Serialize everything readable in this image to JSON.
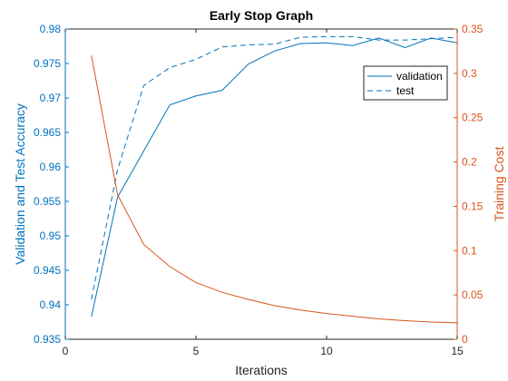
{
  "chart_data": {
    "type": "line",
    "title": "Early Stop Graph",
    "xlabel": "Iterations",
    "ylabel_left": "Validation and Test Accuracy",
    "ylabel_right": "Training Cost",
    "xlim": [
      0,
      15
    ],
    "ylim_left": [
      0.935,
      0.98
    ],
    "ylim_right": [
      0,
      0.35
    ],
    "x_ticks": [
      0,
      5,
      10,
      15
    ],
    "y_left_ticks": [
      0.935,
      0.94,
      0.945,
      0.95,
      0.955,
      0.96,
      0.965,
      0.97,
      0.975,
      0.98
    ],
    "y_right_ticks": [
      0,
      0.05,
      0.1,
      0.15,
      0.2,
      0.25,
      0.3,
      0.35
    ],
    "grid": false,
    "legend_position": "top-right",
    "colors": {
      "left_axis": "#0072BD",
      "right_axis": "#D95319",
      "axes_frame": "#262626"
    },
    "x": [
      1,
      2,
      3,
      4,
      5,
      6,
      7,
      8,
      9,
      10,
      11,
      12,
      13,
      14,
      15
    ],
    "series": [
      {
        "name": "validation",
        "axis": "left",
        "style": "solid",
        "color": "#0072BD",
        "values": [
          0.9383,
          0.9556,
          0.9623,
          0.969,
          0.9703,
          0.9711,
          0.9749,
          0.9768,
          0.9779,
          0.978,
          0.9776,
          0.9787,
          0.9773,
          0.9787,
          0.978
        ]
      },
      {
        "name": "test",
        "axis": "left",
        "style": "dashed",
        "color": "#0072BD",
        "values": [
          0.9408,
          0.9596,
          0.9718,
          0.9744,
          0.9756,
          0.9774,
          0.9777,
          0.9778,
          0.9788,
          0.9789,
          0.9789,
          0.9784,
          0.9784,
          0.9786,
          0.9788
        ]
      },
      {
        "name": "",
        "axis": "right",
        "style": "solid",
        "color": "#D95319",
        "values": [
          0.32,
          0.163,
          0.107,
          0.082,
          0.064,
          0.053,
          0.045,
          0.038,
          0.033,
          0.029,
          0.026,
          0.023,
          0.021,
          0.0195,
          0.0185
        ]
      }
    ]
  }
}
